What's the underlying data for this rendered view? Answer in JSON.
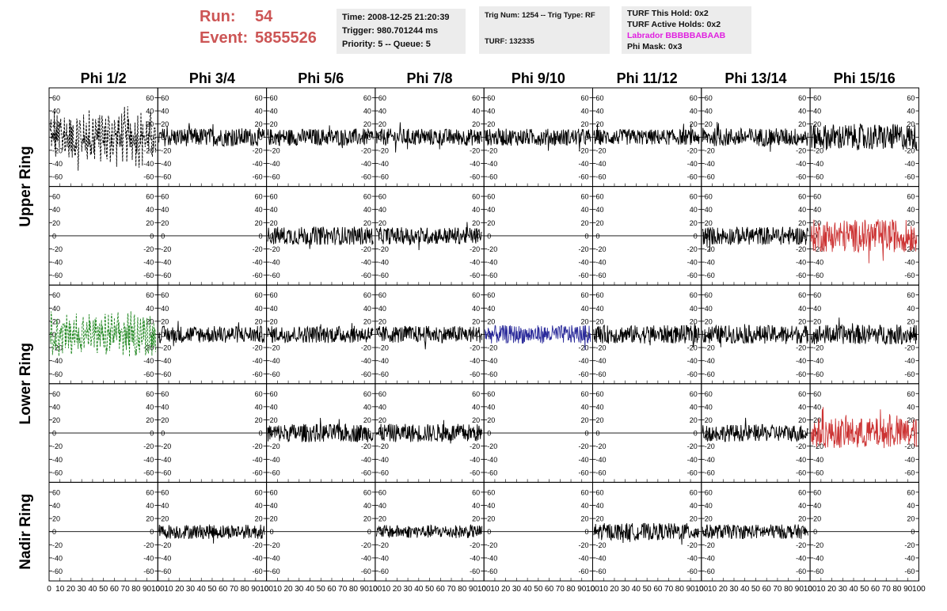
{
  "header": {
    "run_label": "Run:",
    "run_value": "54",
    "event_label": "Event:",
    "event_value": "5855526",
    "time": "Time: 2008-12-25 21:20:39",
    "trigger": "Trigger: 980.701244 ms",
    "priority": "Priority: 5 -- Queue: 5",
    "trig_num": "Trig Num: 1254 -- Trig Type: RF",
    "turf": "TURF: 132335",
    "turf_this_hold": "TURF This Hold: 0x2",
    "turf_active_holds": "TURF Active Holds: 0x2",
    "labrador": "Labrador BBBBBABAAB",
    "phi_mask": "Phi Mask: 0x3"
  },
  "colors": {
    "run_text": "#cc5555",
    "labrador_text": "#e020e0",
    "trace_default": "#000000",
    "trace_red": "#cc3333",
    "trace_green": "#228822",
    "trace_blue": "#2a2a9a"
  },
  "chart_data": {
    "type": "line",
    "columns": [
      "Phi 1/2",
      "Phi 3/4",
      "Phi 5/6",
      "Phi 7/8",
      "Phi 9/10",
      "Phi 11/12",
      "Phi 13/14",
      "Phi 15/16"
    ],
    "row_groups": [
      {
        "label": "Upper Ring",
        "rows": 2
      },
      {
        "label": "Lower Ring",
        "rows": 2
      },
      {
        "label": "Nadir Ring",
        "rows": 1
      }
    ],
    "xlim": [
      0,
      100
    ],
    "ylim": [
      -75,
      75
    ],
    "x_ticks": [
      "0",
      "10",
      "20",
      "30",
      "40",
      "50",
      "60",
      "70",
      "80",
      "90",
      "100"
    ],
    "y_ticks": [
      "60",
      "40",
      "20",
      "0",
      "-20",
      "-40",
      "-60"
    ],
    "series_style": [
      [
        "dash",
        "solid",
        "solid",
        "solid",
        "solid",
        "solid",
        "solid",
        "solid"
      ],
      [
        "flat",
        "flat",
        "solid",
        "solid",
        "flat",
        "flat",
        "solid",
        "red"
      ],
      [
        "green-dash",
        "solid",
        "solid",
        "solid",
        "blue",
        "solid",
        "solid",
        "solid"
      ],
      [
        "flat",
        "flat",
        "solid",
        "solid",
        "flat",
        "flat",
        "solid",
        "red"
      ],
      [
        "flat",
        "solid",
        "flat",
        "solid",
        "flat",
        "solid",
        "solid",
        "flat"
      ]
    ],
    "amplitude": [
      [
        32,
        14,
        13,
        13,
        13,
        12,
        14,
        20
      ],
      [
        0,
        0,
        14,
        13,
        0,
        0,
        14,
        25
      ],
      [
        24,
        13,
        13,
        13,
        14,
        14,
        14,
        15
      ],
      [
        0,
        0,
        14,
        14,
        0,
        0,
        13,
        23
      ],
      [
        0,
        11,
        0,
        10,
        0,
        13,
        11,
        0
      ]
    ]
  }
}
